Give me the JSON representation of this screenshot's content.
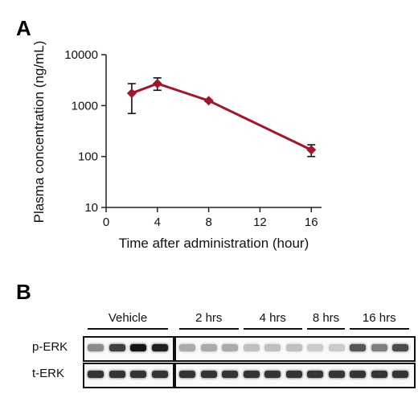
{
  "panels": {
    "a_label": "A",
    "b_label": "B"
  },
  "chart_data": {
    "type": "line",
    "xlabel": "Time after administration (hour)",
    "ylabel": "Plasma concentration (ng/mL)",
    "x_ticks": [
      0,
      4,
      8,
      12,
      16
    ],
    "y_ticks": [
      10,
      100,
      1000,
      10000
    ],
    "y_tick_labels": [
      "10",
      "100",
      "1000",
      "10000"
    ],
    "xlim": [
      0,
      16.8
    ],
    "ylim": [
      10,
      10000
    ],
    "y_scale": "log",
    "grid": false,
    "color": "#a0172b",
    "points": [
      {
        "x": 2,
        "y": 1750,
        "err_low": 700,
        "err_high": 2700
      },
      {
        "x": 4,
        "y": 2700,
        "err_low": 2000,
        "err_high": 3500
      },
      {
        "x": 8,
        "y": 1250,
        "err_low": 1200,
        "err_high": 1300
      },
      {
        "x": 16,
        "y": 135,
        "err_low": 100,
        "err_high": 170
      }
    ]
  },
  "blot": {
    "groups": [
      {
        "label": "Vehicle",
        "lanes": 4
      },
      {
        "label": "2 hrs",
        "lanes": 3
      },
      {
        "label": "4 hrs",
        "lanes": 3
      },
      {
        "label": "8 hrs",
        "lanes": 2
      },
      {
        "label": "16 hrs",
        "lanes": 3
      }
    ],
    "rows": [
      {
        "label": "p-ERK",
        "intensities": [
          0.45,
          0.8,
          1.0,
          0.95,
          0.3,
          0.3,
          0.3,
          0.2,
          0.2,
          0.2,
          0.15,
          0.15,
          0.7,
          0.5,
          0.75
        ]
      },
      {
        "label": "t-ERK",
        "intensities": [
          0.85,
          0.85,
          0.85,
          0.85,
          0.85,
          0.85,
          0.85,
          0.85,
          0.85,
          0.85,
          0.85,
          0.85,
          0.85,
          0.85,
          0.85
        ]
      }
    ]
  }
}
